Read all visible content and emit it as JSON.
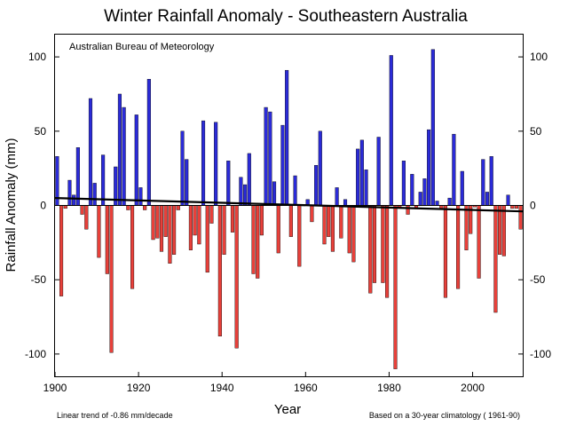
{
  "chart_data": {
    "type": "bar",
    "title": "Winter Rainfall Anomaly - Southeastern Australia",
    "source_label": "Australian Bureau of Meteorology",
    "xlabel": "Year",
    "ylabel": "Rainfall Anomaly (mm)",
    "footer_left": "Linear  trend of -0.86 mm/decade",
    "footer_right": "Based on a 30-year climatology ( 1961-90)",
    "xlim": [
      1900,
      2012
    ],
    "ylim": [
      -115,
      115
    ],
    "x_ticks": [
      1900,
      1920,
      1940,
      1960,
      1980,
      2000
    ],
    "y_ticks": [
      -100,
      -50,
      0,
      50,
      100
    ],
    "grid": false,
    "positive_color": "#2b2bd8",
    "negative_color": "#e8403a",
    "trend": {
      "start_year": 1900,
      "start_value": 5,
      "end_year": 2012,
      "end_value": -4
    },
    "years": [
      1900,
      1901,
      1902,
      1903,
      1904,
      1905,
      1906,
      1907,
      1908,
      1909,
      1910,
      1911,
      1912,
      1913,
      1914,
      1915,
      1916,
      1917,
      1918,
      1919,
      1920,
      1921,
      1922,
      1923,
      1924,
      1925,
      1926,
      1927,
      1928,
      1929,
      1930,
      1931,
      1932,
      1933,
      1934,
      1935,
      1936,
      1937,
      1938,
      1939,
      1940,
      1941,
      1942,
      1943,
      1944,
      1945,
      1946,
      1947,
      1948,
      1949,
      1950,
      1951,
      1952,
      1953,
      1954,
      1955,
      1956,
      1957,
      1958,
      1959,
      1960,
      1961,
      1962,
      1963,
      1964,
      1965,
      1966,
      1967,
      1968,
      1969,
      1970,
      1971,
      1972,
      1973,
      1974,
      1975,
      1976,
      1977,
      1978,
      1979,
      1980,
      1981,
      1982,
      1983,
      1984,
      1985,
      1986,
      1987,
      1988,
      1989,
      1990,
      1991,
      1992,
      1993,
      1994,
      1995,
      1996,
      1997,
      1998,
      1999,
      2000,
      2001,
      2002,
      2003,
      2004,
      2005,
      2006,
      2007,
      2008,
      2009,
      2010,
      2011
    ],
    "values": [
      33,
      -61,
      -2,
      17,
      7,
      39,
      -6,
      -16,
      72,
      15,
      -35,
      34,
      -46,
      -99,
      26,
      75,
      66,
      -3,
      -56,
      61,
      12,
      -3,
      85,
      -23,
      -22,
      -31,
      -21,
      -39,
      -33,
      -3,
      50,
      31,
      -30,
      -20,
      -26,
      57,
      -45,
      -12,
      56,
      -88,
      -33,
      30,
      -18,
      -96,
      19,
      14,
      35,
      -46,
      -49,
      -20,
      66,
      63,
      16,
      -32,
      54,
      91,
      -21,
      20,
      -41,
      0,
      4,
      -11,
      27,
      50,
      -26,
      -21,
      -31,
      12,
      -22,
      4,
      -32,
      -38,
      38,
      44,
      24,
      -59,
      -52,
      46,
      -52,
      -62,
      101,
      -110,
      -2,
      30,
      -6,
      21,
      -2,
      9,
      18,
      51,
      105,
      3,
      -2,
      -62,
      5,
      48,
      -56,
      23,
      -30,
      -19,
      -1,
      -49,
      31,
      9,
      33,
      -72,
      -33,
      -34,
      7,
      -2,
      -2,
      -16
    ]
  }
}
